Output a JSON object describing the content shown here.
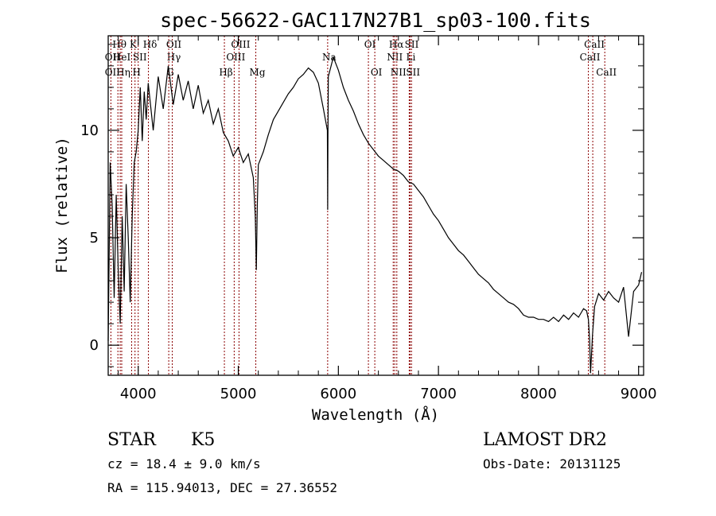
{
  "chart_data": {
    "type": "line",
    "title": "spec-56622-GAC117N27B1_sp03-100.fits",
    "xlabel": "Wavelength (Å)",
    "ylabel": "Flux (relative)",
    "xlim": [
      3700,
      9050
    ],
    "ylim": [
      -1.4,
      14.4
    ],
    "xticks": [
      4000,
      5000,
      6000,
      7000,
      8000,
      9000
    ],
    "yticks": [
      0,
      5,
      10
    ],
    "grid": false,
    "legend": "none",
    "series": [
      {
        "x": [
          3700,
          3720,
          3740,
          3760,
          3780,
          3800,
          3820,
          3840,
          3860,
          3880,
          3900,
          3920,
          3940,
          3960,
          3980,
          4000,
          4020,
          4040,
          4060,
          4080,
          4100,
          4150,
          4200,
          4250,
          4300,
          4350,
          4400,
          4450,
          4500,
          4550,
          4600,
          4650,
          4700,
          4750,
          4800,
          4850,
          4900,
          4950,
          5000,
          5050,
          5100,
          5150,
          5170,
          5180,
          5190,
          5200,
          5250,
          5300,
          5350,
          5400,
          5450,
          5500,
          5550,
          5600,
          5650,
          5700,
          5750,
          5800,
          5850,
          5890,
          5893,
          5896,
          5900,
          5950,
          6000,
          6050,
          6100,
          6150,
          6200,
          6250,
          6300,
          6350,
          6400,
          6450,
          6500,
          6550,
          6600,
          6650,
          6700,
          6750,
          6800,
          6850,
          6900,
          6950,
          7000,
          7050,
          7100,
          7150,
          7200,
          7250,
          7300,
          7350,
          7400,
          7450,
          7500,
          7550,
          7600,
          7650,
          7700,
          7750,
          7800,
          7850,
          7900,
          7950,
          8000,
          8050,
          8100,
          8150,
          8200,
          8250,
          8300,
          8350,
          8400,
          8450,
          8480,
          8498,
          8510,
          8520,
          8540,
          8560,
          8600,
          8650,
          8700,
          8750,
          8800,
          8850,
          8900,
          8950,
          9000,
          9030
        ],
        "y": [
          0.2,
          8.5,
          6.5,
          2.2,
          7.0,
          3.5,
          1.0,
          6.0,
          2.5,
          7.5,
          5.0,
          2.0,
          6.0,
          8.5,
          9.0,
          10.0,
          12.0,
          9.5,
          11.8,
          10.5,
          12.2,
          10.0,
          12.5,
          11.0,
          13.0,
          11.2,
          12.6,
          11.4,
          12.3,
          11.0,
          12.1,
          10.8,
          11.4,
          10.3,
          11.0,
          9.9,
          9.5,
          8.8,
          9.2,
          8.5,
          8.9,
          7.8,
          6.0,
          3.5,
          6.5,
          8.4,
          9.0,
          9.8,
          10.5,
          10.9,
          11.3,
          11.7,
          12.0,
          12.4,
          12.6,
          12.9,
          12.7,
          12.2,
          11.0,
          10.0,
          6.3,
          9.5,
          12.5,
          13.4,
          12.8,
          12.0,
          11.4,
          10.9,
          10.3,
          9.8,
          9.4,
          9.1,
          8.8,
          8.6,
          8.4,
          8.2,
          8.1,
          7.9,
          7.6,
          7.5,
          7.2,
          6.9,
          6.5,
          6.1,
          5.8,
          5.4,
          5.0,
          4.7,
          4.4,
          4.2,
          3.9,
          3.6,
          3.3,
          3.1,
          2.9,
          2.6,
          2.4,
          2.2,
          2.0,
          1.9,
          1.7,
          1.4,
          1.3,
          1.3,
          1.2,
          1.2,
          1.1,
          1.3,
          1.1,
          1.4,
          1.2,
          1.5,
          1.3,
          1.7,
          1.6,
          1.2,
          0.3,
          -1.3,
          0.5,
          1.8,
          2.4,
          2.1,
          2.5,
          2.2,
          2.0,
          2.7,
          0.4,
          2.5,
          2.8,
          3.4
        ]
      }
    ]
  },
  "lines": [
    {
      "label": "Hθ",
      "wavelength": 3797,
      "row": 1
    },
    {
      "label": "OII",
      "wavelength": 3727,
      "row": 2
    },
    {
      "label": "OII",
      "wavelength": 3727,
      "row": 3
    },
    {
      "label": "HeI",
      "wavelength": 3820,
      "row": 2
    },
    {
      "label": "Hη",
      "wavelength": 3835,
      "row": 3
    },
    {
      "label": "K",
      "wavelength": 3934,
      "row": 1
    },
    {
      "label": "SII",
      "wavelength": 4000,
      "row": 2
    },
    {
      "label": "H",
      "wavelength": 3968,
      "row": 3
    },
    {
      "label": "Hδ",
      "wavelength": 4102,
      "row": 1
    },
    {
      "label": "OII",
      "wavelength": 4340,
      "row": 1
    },
    {
      "label": "Hγ",
      "wavelength": 4340,
      "row": 2
    },
    {
      "label": "G",
      "wavelength": 4305,
      "row": 3
    },
    {
      "label": "Hβ",
      "wavelength": 4861,
      "row": 3
    },
    {
      "label": "OIII",
      "wavelength": 5007,
      "row": 1
    },
    {
      "label": "OIII",
      "wavelength": 4959,
      "row": 2
    },
    {
      "label": "Mg",
      "wavelength": 5175,
      "row": 3
    },
    {
      "label": "Na",
      "wavelength": 5893,
      "row": 2
    },
    {
      "label": "OI",
      "wavelength": 6300,
      "row": 1
    },
    {
      "label": "OI",
      "wavelength": 6364,
      "row": 3
    },
    {
      "label": "Hα",
      "wavelength": 6563,
      "row": 1
    },
    {
      "label": "SII",
      "wavelength": 6717,
      "row": 1
    },
    {
      "label": "NII",
      "wavelength": 6548,
      "row": 2
    },
    {
      "label": "Li",
      "wavelength": 6708,
      "row": 2
    },
    {
      "label": "NII",
      "wavelength": 6584,
      "row": 3
    },
    {
      "label": "SII",
      "wavelength": 6731,
      "row": 3
    },
    {
      "label": "CaII",
      "wavelength": 8542,
      "row": 1
    },
    {
      "label": "CaII",
      "wavelength": 8498,
      "row": 2
    },
    {
      "label": "CaII",
      "wavelength": 8662,
      "row": 3
    }
  ],
  "line_color": "#8b0000",
  "info": {
    "class": "STAR",
    "subclass": "K5",
    "cz": "cz = 18.4 ± 9.0 km/s",
    "coords": "RA = 115.94013, DEC =  27.36552",
    "survey": "LAMOST DR2",
    "obs_date": "Obs-Date: 20131125"
  }
}
